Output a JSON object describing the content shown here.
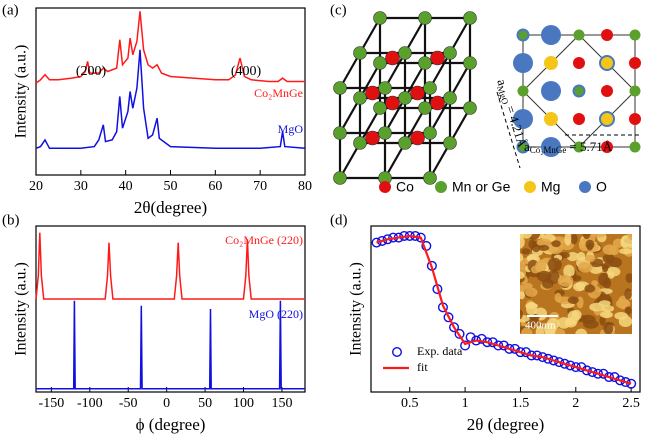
{
  "chart_data": [
    {
      "type": "line",
      "panel_label": "(a)",
      "xlabel": "2θ(degree)",
      "ylabel": "Intensity (a.u.)",
      "xlim": [
        20,
        80
      ],
      "xticks": [
        20,
        30,
        40,
        50,
        60,
        70,
        80
      ],
      "ylim": [
        0,
        1
      ],
      "annotations": [
        "(200)",
        "(400)"
      ],
      "series": [
        {
          "name": "Co₂MnGe",
          "color": "#ff1a1a",
          "x": [
            20,
            21,
            22,
            23,
            25,
            28,
            30,
            31,
            31.5,
            32,
            34,
            35,
            36,
            38,
            38.7,
            39.3,
            40.5,
            41,
            41.6,
            42.5,
            43.2,
            44,
            45,
            46,
            47,
            48,
            50,
            55,
            60,
            63,
            64.5,
            65.5,
            66.5,
            68,
            72,
            74,
            75,
            76,
            80
          ],
          "values": [
            0.55,
            0.57,
            0.6,
            0.57,
            0.57,
            0.58,
            0.59,
            0.62,
            0.68,
            0.61,
            0.61,
            0.64,
            0.62,
            0.64,
            0.81,
            0.66,
            0.7,
            0.82,
            0.72,
            0.8,
            0.98,
            0.75,
            0.66,
            0.64,
            0.66,
            0.61,
            0.59,
            0.58,
            0.57,
            0.57,
            0.6,
            0.7,
            0.59,
            0.57,
            0.56,
            0.56,
            0.58,
            0.56,
            0.56
          ]
        },
        {
          "name": "MgO",
          "color": "#1010e0",
          "x": [
            20,
            21,
            22,
            23,
            25,
            30,
            33,
            34,
            35,
            35.5,
            37,
            38,
            38.7,
            39.3,
            40.5,
            41,
            41.6,
            42.5,
            43.2,
            44,
            45,
            46,
            47,
            47.5,
            50,
            60,
            70,
            74.5,
            75,
            75.5,
            80
          ],
          "values": [
            0.16,
            0.17,
            0.21,
            0.16,
            0.16,
            0.16,
            0.17,
            0.21,
            0.3,
            0.2,
            0.21,
            0.26,
            0.47,
            0.28,
            0.38,
            0.5,
            0.4,
            0.52,
            0.75,
            0.4,
            0.22,
            0.24,
            0.34,
            0.22,
            0.17,
            0.16,
            0.16,
            0.17,
            0.26,
            0.17,
            0.16
          ]
        }
      ]
    },
    {
      "type": "line",
      "panel_label": "(b)",
      "xlabel": "ϕ (degree)",
      "ylabel": "Intensity (a.u.)",
      "xlim": [
        -170,
        180
      ],
      "xticks": [
        -150,
        -100,
        -50,
        0,
        50,
        100,
        150
      ],
      "ylim": [
        0,
        1
      ],
      "series": [
        {
          "name": "Co₂MnGe (220)",
          "color": "#ff1a1a",
          "x": [
            -170,
            -167,
            -165,
            -163,
            -160,
            -80,
            -77,
            -75,
            -73,
            -70,
            10,
            13,
            15,
            17,
            20,
            100,
            103,
            105,
            107,
            110,
            180
          ],
          "values": [
            0.56,
            0.7,
            0.96,
            0.7,
            0.56,
            0.56,
            0.7,
            0.9,
            0.7,
            0.56,
            0.56,
            0.7,
            0.9,
            0.7,
            0.56,
            0.56,
            0.7,
            0.92,
            0.7,
            0.56,
            0.56
          ]
        },
        {
          "name": "MgO (220)",
          "color": "#1010e0",
          "x": [
            -170,
            -121,
            -120,
            -119,
            -34,
            -33,
            -32,
            56,
            57,
            58,
            147,
            148,
            149,
            180
          ],
          "values": [
            0.02,
            0.02,
            0.55,
            0.02,
            0.02,
            0.52,
            0.02,
            0.02,
            0.5,
            0.02,
            0.02,
            0.55,
            0.02,
            0.02
          ]
        }
      ]
    },
    {
      "type": "line",
      "panel_label": "(d)",
      "xlabel": "2θ (degree)",
      "ylabel": "Intensity (a.u.)",
      "xlim": [
        0.15,
        2.58
      ],
      "xticks": [
        0.5,
        1,
        1.5,
        2,
        2.5
      ],
      "ylim": [
        0,
        1
      ],
      "legend": "lower left",
      "inset_label": "400nm",
      "series": [
        {
          "name": "Exp. data",
          "color": "#1010e0",
          "marker": "circle",
          "x": [
            0.2,
            0.25,
            0.3,
            0.35,
            0.4,
            0.45,
            0.5,
            0.55,
            0.6,
            0.65,
            0.7,
            0.75,
            0.8,
            0.85,
            0.9,
            0.95,
            1.0,
            1.05,
            1.1,
            1.15,
            1.2,
            1.25,
            1.3,
            1.35,
            1.4,
            1.45,
            1.5,
            1.55,
            1.6,
            1.65,
            1.7,
            1.75,
            1.8,
            1.85,
            1.9,
            1.95,
            2.0,
            2.05,
            2.1,
            2.15,
            2.2,
            2.25,
            2.3,
            2.35,
            2.4,
            2.45,
            2.5
          ],
          "values": [
            0.9,
            0.91,
            0.92,
            0.93,
            0.93,
            0.94,
            0.94,
            0.94,
            0.93,
            0.88,
            0.76,
            0.62,
            0.51,
            0.45,
            0.39,
            0.35,
            0.28,
            0.33,
            0.31,
            0.32,
            0.3,
            0.3,
            0.28,
            0.28,
            0.26,
            0.26,
            0.24,
            0.24,
            0.22,
            0.22,
            0.21,
            0.2,
            0.19,
            0.18,
            0.17,
            0.16,
            0.15,
            0.15,
            0.13,
            0.12,
            0.11,
            0.11,
            0.09,
            0.09,
            0.07,
            0.06,
            0.05
          ]
        },
        {
          "name": "fit",
          "color": "#ff1a1a",
          "x": [
            0.2,
            0.3,
            0.4,
            0.5,
            0.6,
            0.7,
            0.8,
            0.9,
            1.0,
            1.1,
            1.2,
            1.3,
            1.4,
            1.5,
            1.6,
            1.7,
            1.8,
            1.9,
            2.0,
            2.1,
            2.2,
            2.3,
            2.4,
            2.5
          ],
          "values": [
            0.9,
            0.92,
            0.93,
            0.94,
            0.93,
            0.75,
            0.52,
            0.39,
            0.29,
            0.31,
            0.3,
            0.28,
            0.26,
            0.24,
            0.22,
            0.21,
            0.19,
            0.17,
            0.15,
            0.13,
            0.11,
            0.09,
            0.07,
            0.05
          ]
        }
      ]
    }
  ],
  "diagram": {
    "panel_label": "(c)",
    "legend": [
      {
        "label": "Co",
        "color": "#e01010"
      },
      {
        "label": "Mn or Ge",
        "color": "#5aa02c"
      },
      {
        "label": "Mg",
        "color": "#f5c518"
      },
      {
        "label": "O",
        "color": "#4a78c0"
      }
    ],
    "a_mgo": {
      "symbol": "a",
      "subscript": "MgO",
      "value": "= 4.21Å"
    },
    "a_co2mnge": {
      "symbol": "a",
      "subscript": "Co₂MnGe",
      "value": "= 5.71Å"
    }
  }
}
